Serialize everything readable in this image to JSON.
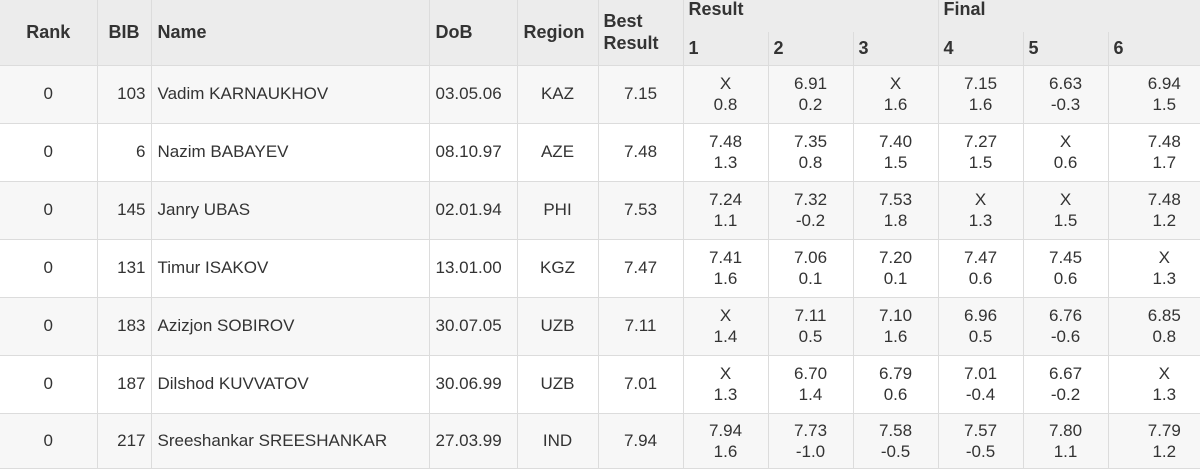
{
  "table": {
    "headers": {
      "rank": "Rank",
      "bib": "BIB",
      "name": "Name",
      "dob": "DoB",
      "region": "Region",
      "best_result": "Best Result",
      "result_group": "Result",
      "final_group": "Final",
      "rounds": [
        "1",
        "2",
        "3",
        "4",
        "5",
        "6"
      ]
    },
    "rows": [
      {
        "rank": "0",
        "bib": "103",
        "name": "Vadim KARNAUKHOV",
        "dob": "03.05.06",
        "region": "KAZ",
        "best": "7.15",
        "attempts": [
          {
            "mark": "X",
            "wind": "0.8"
          },
          {
            "mark": "6.91",
            "wind": "0.2"
          },
          {
            "mark": "X",
            "wind": "1.6"
          },
          {
            "mark": "7.15",
            "wind": "1.6"
          },
          {
            "mark": "6.63",
            "wind": "-0.3"
          },
          {
            "mark": "6.94",
            "wind": "1.5"
          }
        ]
      },
      {
        "rank": "0",
        "bib": "6",
        "name": "Nazim BABAYEV",
        "dob": "08.10.97",
        "region": "AZE",
        "best": "7.48",
        "attempts": [
          {
            "mark": "7.48",
            "wind": "1.3"
          },
          {
            "mark": "7.35",
            "wind": "0.8"
          },
          {
            "mark": "7.40",
            "wind": "1.5"
          },
          {
            "mark": "7.27",
            "wind": "1.5"
          },
          {
            "mark": "X",
            "wind": "0.6"
          },
          {
            "mark": "7.48",
            "wind": "1.7"
          }
        ]
      },
      {
        "rank": "0",
        "bib": "145",
        "name": "Janry UBAS",
        "dob": "02.01.94",
        "region": "PHI",
        "best": "7.53",
        "attempts": [
          {
            "mark": "7.24",
            "wind": "1.1"
          },
          {
            "mark": "7.32",
            "wind": "-0.2"
          },
          {
            "mark": "7.53",
            "wind": "1.8"
          },
          {
            "mark": "X",
            "wind": "1.3"
          },
          {
            "mark": "X",
            "wind": "1.5"
          },
          {
            "mark": "7.48",
            "wind": "1.2"
          }
        ]
      },
      {
        "rank": "0",
        "bib": "131",
        "name": "Timur ISAKOV",
        "dob": "13.01.00",
        "region": "KGZ",
        "best": "7.47",
        "attempts": [
          {
            "mark": "7.41",
            "wind": "1.6"
          },
          {
            "mark": "7.06",
            "wind": "0.1"
          },
          {
            "mark": "7.20",
            "wind": "0.1"
          },
          {
            "mark": "7.47",
            "wind": "0.6"
          },
          {
            "mark": "7.45",
            "wind": "0.6"
          },
          {
            "mark": "X",
            "wind": "1.3"
          }
        ]
      },
      {
        "rank": "0",
        "bib": "183",
        "name": "Azizjon SOBIROV",
        "dob": "30.07.05",
        "region": "UZB",
        "best": "7.11",
        "attempts": [
          {
            "mark": "X",
            "wind": "1.4"
          },
          {
            "mark": "7.11",
            "wind": "0.5"
          },
          {
            "mark": "7.10",
            "wind": "1.6"
          },
          {
            "mark": "6.96",
            "wind": "0.5"
          },
          {
            "mark": "6.76",
            "wind": "-0.6"
          },
          {
            "mark": "6.85",
            "wind": "0.8"
          }
        ]
      },
      {
        "rank": "0",
        "bib": "187",
        "name": "Dilshod KUVVATOV",
        "dob": "30.06.99",
        "region": "UZB",
        "best": "7.01",
        "attempts": [
          {
            "mark": "X",
            "wind": "1.3"
          },
          {
            "mark": "6.70",
            "wind": "1.4"
          },
          {
            "mark": "6.79",
            "wind": "0.6"
          },
          {
            "mark": "7.01",
            "wind": "-0.4"
          },
          {
            "mark": "6.67",
            "wind": "-0.2"
          },
          {
            "mark": "X",
            "wind": "1.3"
          }
        ]
      },
      {
        "rank": "0",
        "bib": "217",
        "name": "Sreeshankar SREESHANKAR",
        "dob": "27.03.99",
        "region": "IND",
        "best": "7.94",
        "attempts": [
          {
            "mark": "7.94",
            "wind": "1.6"
          },
          {
            "mark": "7.73",
            "wind": "-1.0"
          },
          {
            "mark": "7.58",
            "wind": "-0.5"
          },
          {
            "mark": "7.57",
            "wind": "-0.5"
          },
          {
            "mark": "7.80",
            "wind": "1.1"
          },
          {
            "mark": "7.79",
            "wind": "1.2"
          }
        ]
      }
    ]
  },
  "colors": {
    "header_bg": "#ececec",
    "row_alt_bg": "#f7f7f7",
    "row_bg": "#ffffff",
    "border": "#dcdcdc",
    "text": "#333333"
  }
}
